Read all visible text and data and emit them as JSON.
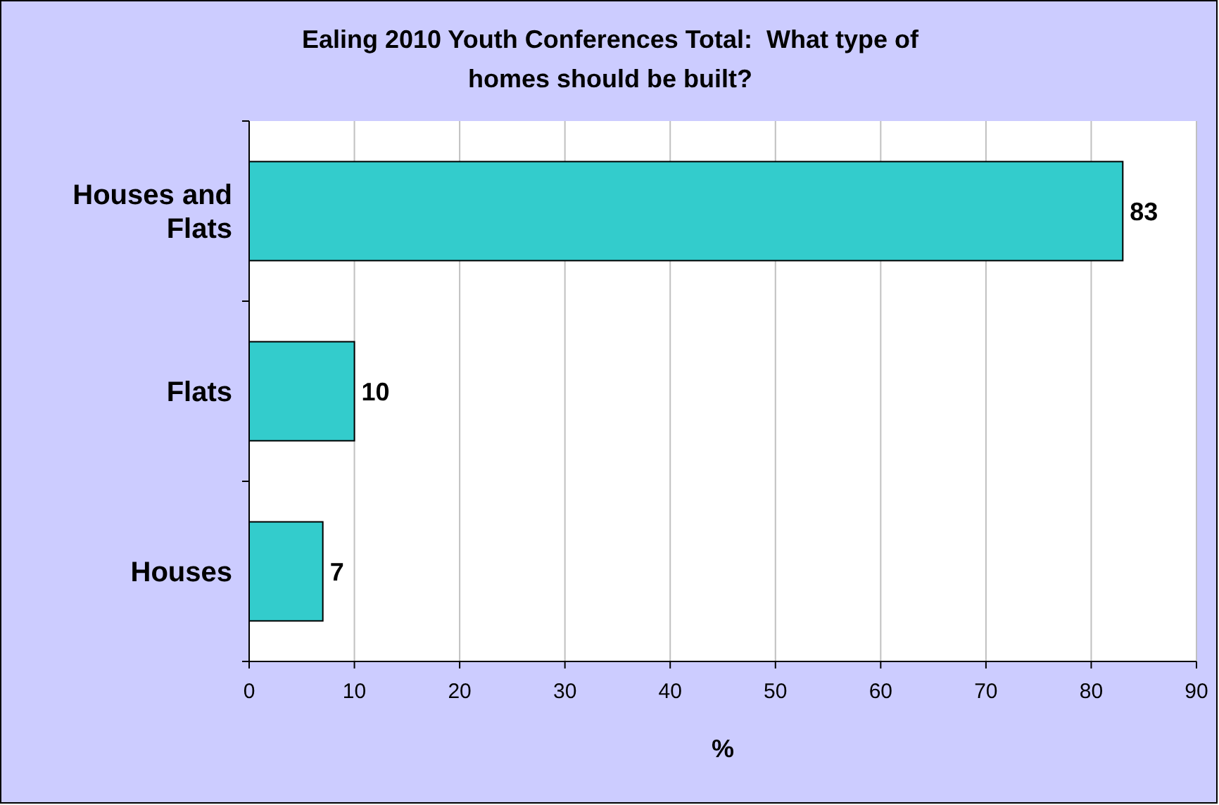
{
  "chart_data": {
    "type": "bar",
    "orientation": "horizontal",
    "title": "Ealing 2010 Youth Conferences Total:  What type of homes should be built?",
    "xlabel": "%",
    "categories": [
      "Houses and Flats",
      "Flats",
      "Houses"
    ],
    "series": [
      {
        "color": "#33cccc",
        "values": [
          83,
          10,
          7
        ]
      }
    ],
    "xlim": [
      0,
      90
    ],
    "xticks": [
      0,
      10,
      20,
      30,
      40,
      50,
      60,
      70,
      80,
      90
    ],
    "grid": "x",
    "data_labels": true
  }
}
